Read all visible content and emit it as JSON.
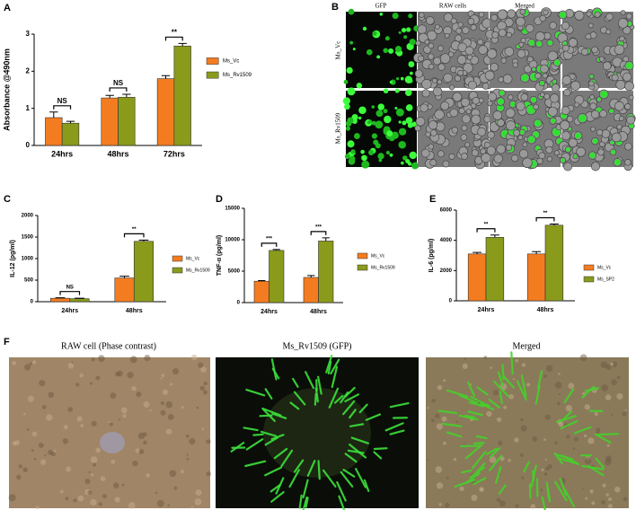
{
  "chart_data": [
    {
      "type": "bar",
      "panel_label": "A",
      "ylabel": "Absorbance @490nm",
      "categories": [
        "24hrs",
        "48hrs",
        "72hrs"
      ],
      "series": [
        {
          "name": "Ms_Vc",
          "color": "#f47c20",
          "values": [
            0.75,
            1.28,
            1.8
          ],
          "errors": [
            0.15,
            0.07,
            0.08
          ]
        },
        {
          "name": "Ms_Rv1509",
          "color": "#8a9a1b",
          "values": [
            0.6,
            1.3,
            2.68
          ],
          "errors": [
            0.05,
            0.08,
            0.07
          ]
        }
      ],
      "annotations": [
        "NS",
        "NS",
        "**"
      ],
      "ylim": [
        0,
        3
      ],
      "yticks": [
        0,
        1,
        2,
        3
      ]
    },
    {
      "type": "bar",
      "panel_label": "C",
      "ylabel": "IL-12 (pg/ml)",
      "categories": [
        "24hrs",
        "48hrs"
      ],
      "series": [
        {
          "name": "Ms_Vc",
          "color": "#f47c20",
          "values": [
            80,
            550
          ],
          "errors": [
            10,
            40
          ]
        },
        {
          "name": "Ms_Rv1509",
          "color": "#8a9a1b",
          "values": [
            70,
            1400
          ],
          "errors": [
            10,
            30
          ]
        }
      ],
      "annotations": [
        "NS",
        "**"
      ],
      "ylim": [
        0,
        2000
      ],
      "yticks": [
        0,
        500,
        1000,
        1500,
        2000
      ]
    },
    {
      "type": "bar",
      "panel_label": "D",
      "ylabel": "TNF-α (pg/ml)",
      "categories": [
        "24hrs",
        "48hrs"
      ],
      "series": [
        {
          "name": "Ms_Vc",
          "color": "#f47c20",
          "values": [
            3400,
            4000
          ],
          "errors": [
            100,
            300
          ]
        },
        {
          "name": "Ms_Rv1509",
          "color": "#8a9a1b",
          "values": [
            8300,
            9800
          ],
          "errors": [
            150,
            500
          ]
        }
      ],
      "annotations": [
        "***",
        "***"
      ],
      "ylim": [
        0,
        15000
      ],
      "yticks": [
        0,
        5000,
        10000,
        15000
      ]
    },
    {
      "type": "bar",
      "panel_label": "E",
      "ylabel": "IL-6 (pg/ml)",
      "categories": [
        "24hrs",
        "48hrs"
      ],
      "series": [
        {
          "name": "Ms_Vc",
          "color": "#f47c20",
          "values": [
            3100,
            3100
          ],
          "errors": [
            100,
            150
          ]
        },
        {
          "name": "Ms_SP2",
          "color": "#8a9a1b",
          "values": [
            4200,
            5000
          ],
          "errors": [
            150,
            80
          ]
        }
      ],
      "annotations": [
        "**",
        "**"
      ],
      "ylim": [
        0,
        6000
      ],
      "yticks": [
        0,
        2000,
        4000,
        6000
      ]
    }
  ],
  "panel_b": {
    "panel_label": "B",
    "columns": [
      "GFP",
      "RAW cells",
      "Merged"
    ],
    "rows": [
      "Ms_Vc",
      "Ms_Rv1509"
    ]
  },
  "panel_f": {
    "panel_label": "F",
    "titles": [
      "RAW cell (Phase contrast)",
      "Ms_Rv1509 (GFP)",
      "Merged"
    ]
  }
}
